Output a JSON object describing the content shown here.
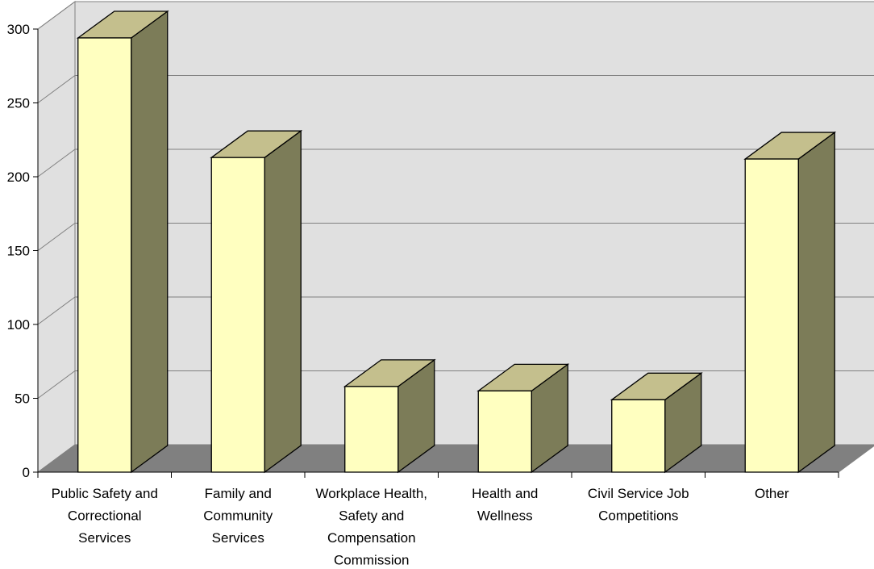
{
  "chart_data": {
    "type": "bar",
    "categories": [
      [
        "Public Safety and",
        "Correctional",
        "Services"
      ],
      [
        "Family and",
        "Community",
        "Services"
      ],
      [
        "Workplace Health,",
        "Safety and",
        "Compensation",
        "Commission"
      ],
      [
        "Health and",
        "Wellness"
      ],
      [
        "Civil Service Job",
        "Competitions"
      ],
      [
        "Other"
      ]
    ],
    "values": [
      294,
      213,
      58,
      55,
      49,
      212
    ],
    "title": "",
    "xlabel": "",
    "ylabel": "",
    "ylim": [
      0,
      300
    ],
    "yticks": [
      "0",
      "50",
      "100",
      "150",
      "200",
      "250",
      "300"
    ],
    "style": "3d-column",
    "grid": true,
    "legend": "none",
    "colors": {
      "bar_front": "#ffffc0",
      "bar_top": "#c4bf8d",
      "bar_side": "#7c7c58",
      "wall": "#e0e0e0",
      "floor": "#808080",
      "gridline": "#808080",
      "outline": "#000000"
    }
  }
}
